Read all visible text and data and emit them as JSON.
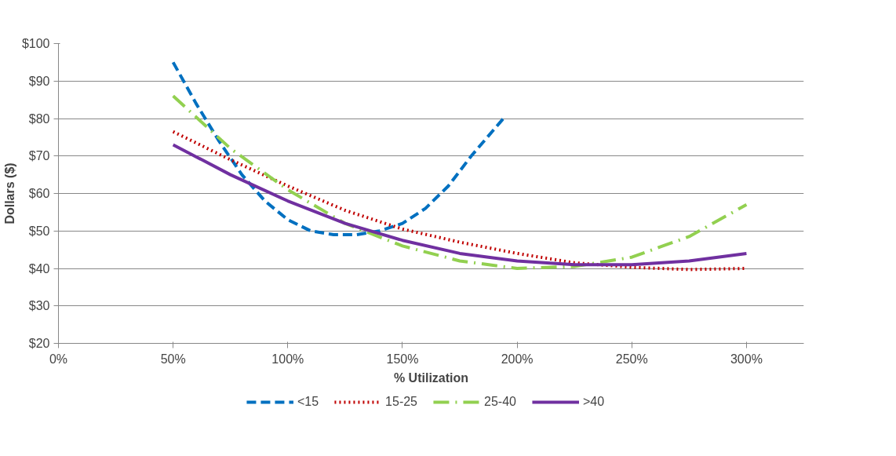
{
  "chart_data": {
    "type": "line",
    "xlabel": "% Utilization",
    "ylabel": "Dollars ($)",
    "xlim": [
      0,
      3.25
    ],
    "xticks": [
      {
        "value": 0,
        "label": "0%"
      },
      {
        "value": 0.5,
        "label": "50%"
      },
      {
        "value": 1,
        "label": "100%"
      },
      {
        "value": 1.5,
        "label": "150%"
      },
      {
        "value": 2,
        "label": "200%"
      },
      {
        "value": 2.5,
        "label": "250%"
      },
      {
        "value": 3,
        "label": "300%"
      }
    ],
    "ylim": [
      20,
      100
    ],
    "yticks": [
      {
        "value": 20,
        "label": "$20"
      },
      {
        "value": 30,
        "label": "$30"
      },
      {
        "value": 40,
        "label": "$40"
      },
      {
        "value": 50,
        "label": "$50"
      },
      {
        "value": 60,
        "label": "$60"
      },
      {
        "value": 70,
        "label": "$70"
      },
      {
        "value": 80,
        "label": "$80"
      },
      {
        "value": 90,
        "label": "$90"
      },
      {
        "value": 100,
        "label": "$100"
      }
    ],
    "grid": "y",
    "legend": "bottom",
    "marker": "none",
    "series": [
      {
        "name": "<15",
        "color": "#0070c0",
        "line_style": "dashed",
        "x": [
          0.5,
          0.6,
          0.7,
          0.8,
          0.9,
          1.0,
          1.1,
          1.2,
          1.3,
          1.4,
          1.5,
          1.6,
          1.7,
          1.8,
          1.94
        ],
        "values": [
          95,
          84,
          74,
          65,
          58,
          53,
          50,
          49,
          49,
          50,
          52,
          56,
          62,
          70,
          80
        ]
      },
      {
        "name": "15-25",
        "color": "#c00000",
        "line_style": "dotted",
        "x": [
          0.5,
          0.75,
          1.0,
          1.25,
          1.5,
          1.75,
          2.0,
          2.25,
          2.5,
          2.75,
          3.0
        ],
        "values": [
          76.5,
          69,
          62,
          55.5,
          50.5,
          47,
          44,
          41.5,
          40.3,
          39.7,
          40
        ]
      },
      {
        "name": "25-40",
        "color": "#92d050",
        "line_style": "dashdot",
        "x": [
          0.5,
          0.75,
          1.0,
          1.25,
          1.5,
          1.75,
          2.0,
          2.25,
          2.5,
          2.75,
          3.0
        ],
        "values": [
          86,
          72,
          61,
          52,
          46,
          42,
          40,
          40.5,
          43,
          48.5,
          57
        ]
      },
      {
        "name": ">40",
        "color": "#7030a0",
        "line_style": "solid",
        "x": [
          0.5,
          0.75,
          1.0,
          1.25,
          1.5,
          1.75,
          2.0,
          2.25,
          2.5,
          2.75,
          3.0
        ],
        "values": [
          73,
          65,
          58,
          52,
          47.5,
          44,
          42,
          41,
          41,
          42,
          44
        ]
      }
    ]
  }
}
